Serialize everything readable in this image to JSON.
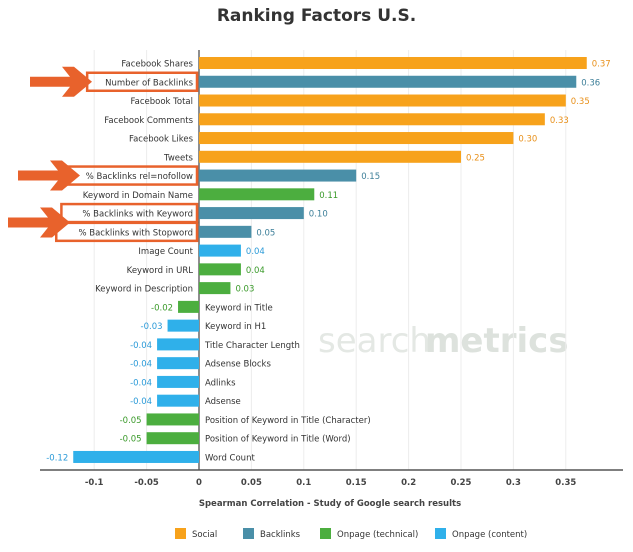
{
  "chart_data": {
    "type": "bar",
    "orientation": "horizontal",
    "title": "Ranking Factors U.S.",
    "xlabel": "Spearman Correlation - Study of Google search results",
    "xlim": [
      -0.15,
      0.39
    ],
    "xticks": [
      -0.1,
      -0.05,
      0,
      0.05,
      0.1,
      0.15,
      0.2,
      0.25,
      0.3,
      0.35
    ],
    "xtick_labels": [
      "-0.1",
      "-0.05",
      "0",
      "0.05",
      "0.1",
      "0.15",
      "0.2",
      "0.25",
      "0.3",
      "0.35"
    ],
    "grid": "vertical",
    "legend_placement": "bottom",
    "series_colors": {
      "Social": "#f7a21b",
      "Backlinks": "#4a8fa8",
      "Onpage (technical)": "#4cae3f",
      "Onpage (content)": "#2fb0ea"
    },
    "legend": [
      "Social",
      "Backlinks",
      "Onpage (technical)",
      "Onpage (content)"
    ],
    "bars": [
      {
        "label": "Facebook Shares",
        "value": 0.37,
        "value_label": "0.37",
        "series": "Social"
      },
      {
        "label": "Number of Backlinks",
        "value": 0.36,
        "value_label": "0.36",
        "series": "Backlinks",
        "highlighted": true
      },
      {
        "label": "Facebook Total",
        "value": 0.35,
        "value_label": "0.35",
        "series": "Social"
      },
      {
        "label": "Facebook Comments",
        "value": 0.33,
        "value_label": "0.33",
        "series": "Social"
      },
      {
        "label": "Facebook Likes",
        "value": 0.3,
        "value_label": "0.30",
        "series": "Social"
      },
      {
        "label": "Tweets",
        "value": 0.25,
        "value_label": "0.25",
        "series": "Social"
      },
      {
        "label": "% Backlinks rel=nofollow",
        "value": 0.15,
        "value_label": "0.15",
        "series": "Backlinks",
        "highlighted": true
      },
      {
        "label": "Keyword in Domain Name",
        "value": 0.11,
        "value_label": "0.11",
        "series": "Onpage (technical)"
      },
      {
        "label": "% Backlinks with Keyword",
        "value": 0.1,
        "value_label": "0.10",
        "series": "Backlinks",
        "highlighted": true
      },
      {
        "label": "% Backlinks with Stopword",
        "value": 0.05,
        "value_label": "0.05",
        "series": "Backlinks",
        "highlighted": true
      },
      {
        "label": "Image Count",
        "value": 0.04,
        "value_label": "0.04",
        "series": "Onpage (content)"
      },
      {
        "label": "Keyword in URL",
        "value": 0.04,
        "value_label": "0.04",
        "series": "Onpage (technical)"
      },
      {
        "label": "Keyword in Description",
        "value": 0.03,
        "value_label": "0.03",
        "series": "Onpage (technical)"
      },
      {
        "label": "Keyword in Title",
        "value": -0.02,
        "value_label": "-0.02",
        "series": "Onpage (technical)"
      },
      {
        "label": "Keyword in H1",
        "value": -0.03,
        "value_label": "-0.03",
        "series": "Onpage (content)"
      },
      {
        "label": "Title Character Length",
        "value": -0.04,
        "value_label": "-0.04",
        "series": "Onpage (content)"
      },
      {
        "label": "Adsense Blocks",
        "value": -0.04,
        "value_label": "-0.04",
        "series": "Onpage (content)"
      },
      {
        "label": "Adlinks",
        "value": -0.04,
        "value_label": "-0.04",
        "series": "Onpage (content)"
      },
      {
        "label": "Adsense",
        "value": -0.04,
        "value_label": "-0.04",
        "series": "Onpage (content)"
      },
      {
        "label": "Position of Keyword in Title (Character)",
        "value": -0.05,
        "value_label": "-0.05",
        "series": "Onpage (technical)"
      },
      {
        "label": "Position of Keyword in Title (Word)",
        "value": -0.05,
        "value_label": "-0.05",
        "series": "Onpage (technical)"
      },
      {
        "label": "Word Count",
        "value": -0.12,
        "value_label": "-0.12",
        "series": "Onpage (content)"
      }
    ],
    "highlight_color": "#e8622c"
  },
  "watermark": "searchmetrics"
}
